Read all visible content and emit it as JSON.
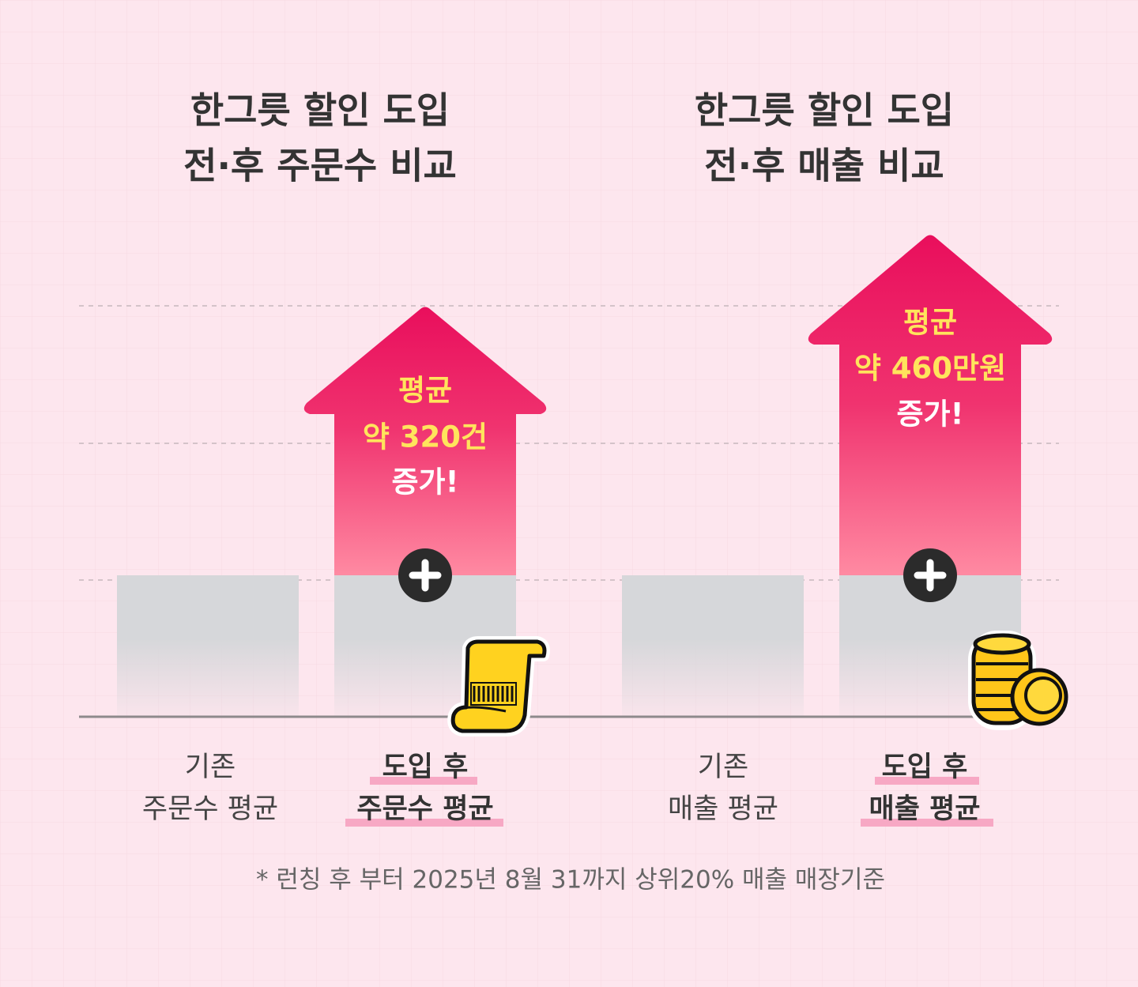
{
  "panels": [
    {
      "title": [
        "한그릇 할인 도입",
        "전·후 주문수 비교"
      ],
      "callout": [
        "평균",
        "약 320건",
        "증가!"
      ],
      "before_label": [
        "기존",
        "주문수 평균"
      ],
      "after_label": [
        "도입 후",
        "주문수 평균"
      ]
    },
    {
      "title": [
        "한그릇 할인 도입",
        "전·후 매출 비교"
      ],
      "callout": [
        "평균",
        "약 460만원",
        "증가!"
      ],
      "before_label": [
        "기존",
        "매출 평균"
      ],
      "after_label": [
        "도입 후",
        "매출 평균"
      ]
    }
  ],
  "footnote": "* 런칭 후 부터 2025년 8월 31까지 상위20% 매출 매장기준"
}
